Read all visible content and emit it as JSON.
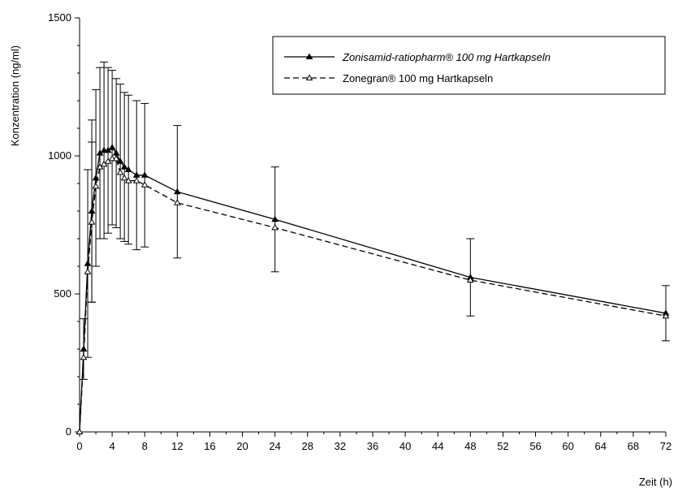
{
  "chart_data": {
    "type": "line",
    "title": "",
    "xlabel": "Zeit (h)",
    "ylabel": "Konzentration (ng/ml)",
    "xlim": [
      0,
      72
    ],
    "ylim": [
      0,
      1500
    ],
    "xticks": [
      0,
      4,
      8,
      12,
      16,
      20,
      24,
      28,
      32,
      36,
      40,
      44,
      48,
      52,
      56,
      60,
      64,
      68,
      72
    ],
    "yticks": [
      0,
      500,
      1000,
      1500
    ],
    "grid": false,
    "legend_position": "top-right",
    "series": [
      {
        "name": "Zonisamid-ratiopharm® 100 mg Hartkapseln",
        "marker": "filled-triangle",
        "line_style": "solid",
        "color": "#000000",
        "x": [
          0,
          0.5,
          1,
          1.5,
          2,
          2.5,
          3,
          3.5,
          4,
          4.5,
          5,
          5.5,
          6,
          7,
          8,
          12,
          24,
          48,
          72
        ],
        "y": [
          0,
          300,
          610,
          800,
          920,
          1010,
          1020,
          1020,
          1030,
          1010,
          980,
          960,
          950,
          930,
          930,
          870,
          770,
          560,
          430
        ],
        "err": [
          0,
          110,
          340,
          330,
          320,
          310,
          320,
          300,
          280,
          270,
          280,
          270,
          270,
          270,
          260,
          240,
          190,
          140,
          100
        ]
      },
      {
        "name": "Zonegran® 100 mg Hartkapseln",
        "marker": "open-triangle",
        "line_style": "dashed",
        "color": "#000000",
        "x": [
          0,
          0.5,
          1,
          1.5,
          2,
          2.5,
          3,
          3.5,
          4,
          4.5,
          5,
          5.5,
          6,
          7,
          8,
          12,
          24,
          48,
          72
        ],
        "y": [
          0,
          270,
          580,
          760,
          890,
          960,
          970,
          980,
          990,
          990,
          940,
          920,
          910,
          910,
          895,
          830,
          740,
          550,
          420
        ],
        "err": [
          0,
          0,
          0,
          290,
          0,
          0,
          0,
          0,
          0,
          0,
          0,
          0,
          0,
          0,
          0,
          0,
          0,
          0,
          0
        ]
      }
    ]
  }
}
